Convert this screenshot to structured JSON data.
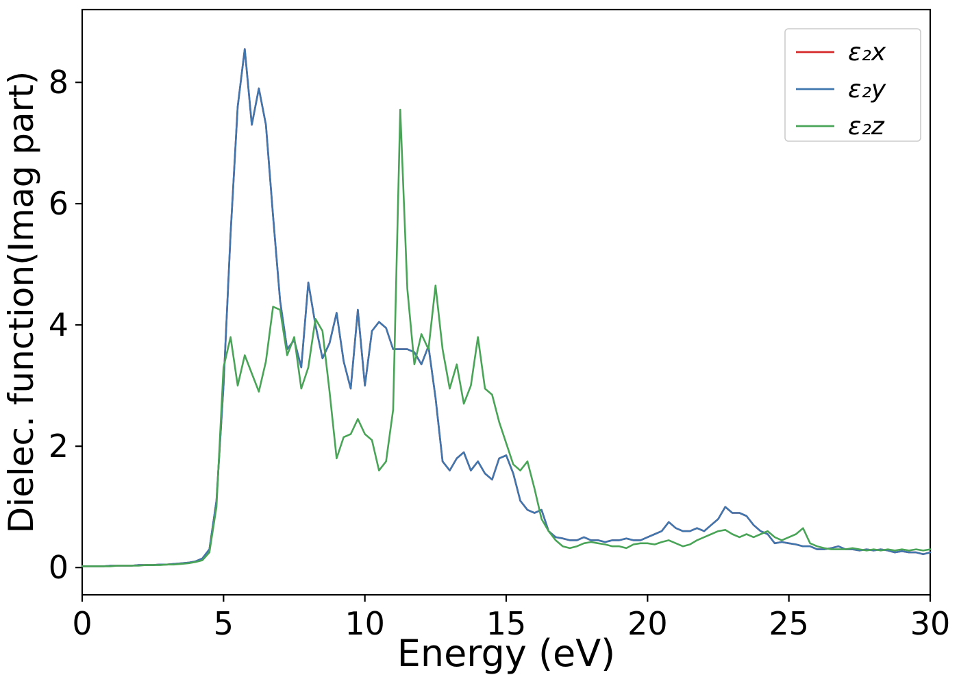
{
  "figure": {
    "background": "#ffffff",
    "spine_color": "#000000"
  },
  "chart_data": {
    "type": "line",
    "title": "",
    "xlabel": "Energy (eV)",
    "ylabel": "Dielec. function(Imag part)",
    "xlim": [
      0,
      30
    ],
    "ylim": [
      -0.45,
      9.2
    ],
    "x_ticks": [
      0,
      5,
      10,
      15,
      20,
      25,
      30
    ],
    "y_ticks": [
      0,
      2,
      4,
      6,
      8
    ],
    "grid": false,
    "legend_position": "upper right",
    "x_start": 0,
    "x_step": 0.25,
    "series": [
      {
        "name": "ε₂x",
        "color": "#d62728",
        "note": "curve coincides with ε₂y and is hidden beneath it",
        "same_as": "ε₂y"
      },
      {
        "name": "ε₂y",
        "color": "#3f76ae",
        "values": [
          0.02,
          0.02,
          0.02,
          0.02,
          0.03,
          0.03,
          0.03,
          0.03,
          0.04,
          0.04,
          0.04,
          0.05,
          0.05,
          0.06,
          0.07,
          0.08,
          0.1,
          0.15,
          0.3,
          1.1,
          3.0,
          5.5,
          7.6,
          8.55,
          7.3,
          7.9,
          7.3,
          5.8,
          4.4,
          3.6,
          3.75,
          3.3,
          4.7,
          4.0,
          3.45,
          3.7,
          4.2,
          3.4,
          2.95,
          4.25,
          3.0,
          3.9,
          4.05,
          3.95,
          3.6,
          3.6,
          3.6,
          3.55,
          3.35,
          3.65,
          2.8,
          1.75,
          1.6,
          1.8,
          1.9,
          1.6,
          1.75,
          1.55,
          1.45,
          1.8,
          1.85,
          1.55,
          1.1,
          0.95,
          0.9,
          0.95,
          0.6,
          0.5,
          0.48,
          0.45,
          0.45,
          0.5,
          0.45,
          0.45,
          0.42,
          0.45,
          0.45,
          0.48,
          0.45,
          0.45,
          0.5,
          0.55,
          0.6,
          0.75,
          0.65,
          0.6,
          0.6,
          0.65,
          0.6,
          0.7,
          0.8,
          1.0,
          0.9,
          0.9,
          0.85,
          0.7,
          0.6,
          0.55,
          0.4,
          0.42,
          0.4,
          0.38,
          0.35,
          0.35,
          0.3,
          0.3,
          0.32,
          0.35,
          0.3,
          0.3,
          0.28,
          0.3,
          0.28,
          0.3,
          0.28,
          0.25,
          0.27,
          0.25,
          0.25,
          0.22,
          0.25
        ]
      },
      {
        "name": "ε₂z",
        "color": "#4aa457",
        "values": [
          0.02,
          0.02,
          0.02,
          0.02,
          0.02,
          0.03,
          0.03,
          0.03,
          0.03,
          0.04,
          0.04,
          0.04,
          0.05,
          0.05,
          0.06,
          0.07,
          0.09,
          0.12,
          0.25,
          1.0,
          3.3,
          3.8,
          3.0,
          3.5,
          3.2,
          2.9,
          3.4,
          4.3,
          4.25,
          3.5,
          3.8,
          2.95,
          3.3,
          4.1,
          3.9,
          2.9,
          1.8,
          2.15,
          2.2,
          2.45,
          2.2,
          2.1,
          1.6,
          1.75,
          2.6,
          7.55,
          4.6,
          3.35,
          3.85,
          3.6,
          4.65,
          3.6,
          2.95,
          3.35,
          2.7,
          3.0,
          3.8,
          2.95,
          2.85,
          2.4,
          2.05,
          1.7,
          1.6,
          1.75,
          1.3,
          0.8,
          0.6,
          0.45,
          0.35,
          0.32,
          0.35,
          0.4,
          0.42,
          0.4,
          0.38,
          0.35,
          0.35,
          0.32,
          0.38,
          0.4,
          0.4,
          0.38,
          0.42,
          0.45,
          0.4,
          0.35,
          0.38,
          0.45,
          0.5,
          0.55,
          0.6,
          0.62,
          0.55,
          0.5,
          0.55,
          0.5,
          0.55,
          0.6,
          0.5,
          0.45,
          0.5,
          0.55,
          0.65,
          0.4,
          0.35,
          0.32,
          0.3,
          0.3,
          0.3,
          0.32,
          0.3,
          0.28,
          0.3,
          0.28,
          0.3,
          0.28,
          0.3,
          0.28,
          0.3,
          0.28,
          0.3
        ]
      }
    ]
  }
}
